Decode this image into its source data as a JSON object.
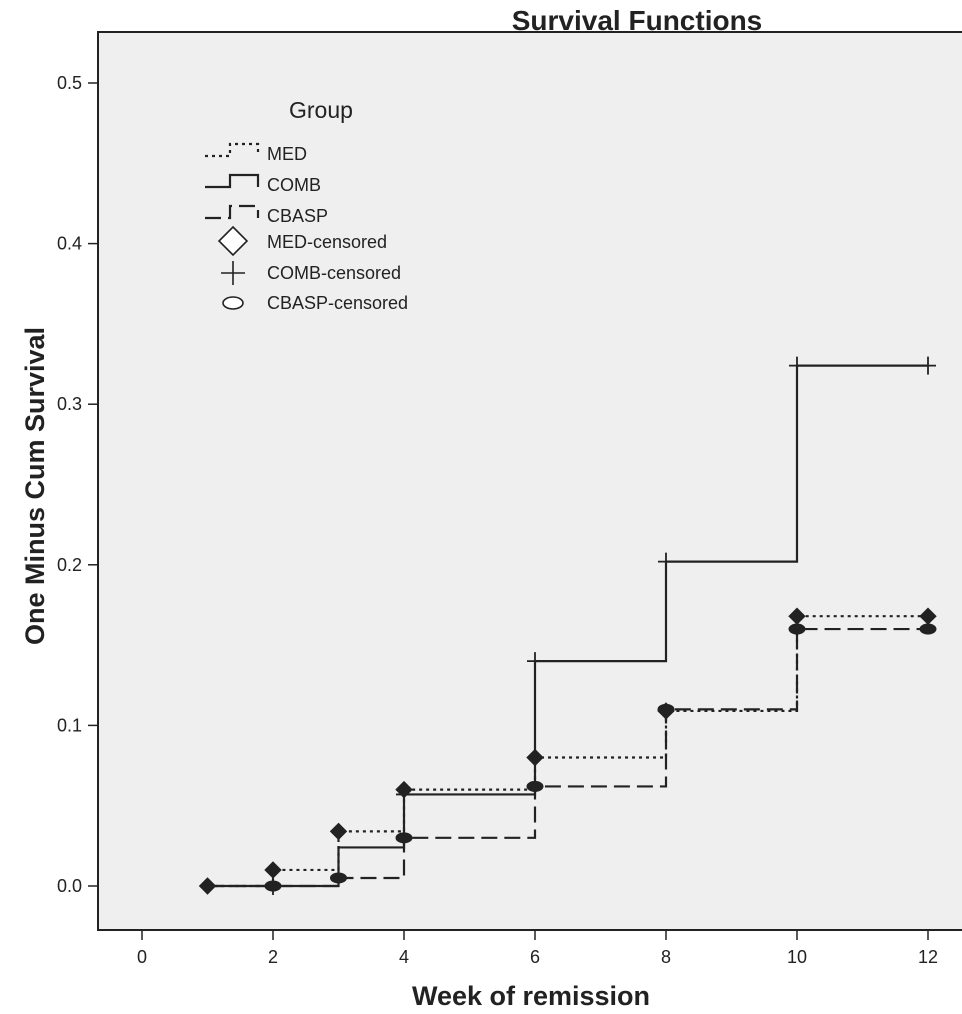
{
  "chart_data": {
    "type": "line",
    "step": true,
    "title": "Survival Functions",
    "xlabel": "Week of remission",
    "ylabel": "One Minus Cum Survival",
    "xlim": [
      0,
      12
    ],
    "ylim": [
      0,
      0.5
    ],
    "xticks": [
      "0",
      "2",
      "4",
      "6",
      "8",
      "10",
      "12"
    ],
    "yticks": [
      "0.0",
      "0.1",
      "0.2",
      "0.3",
      "0.4",
      "0.5"
    ],
    "grid": false,
    "background": "#efefef",
    "legend": {
      "title": "Group",
      "position": "top-left",
      "entries": [
        "MED",
        "COMB",
        "CBASP",
        "MED-censored",
        "COMB-censored",
        "CBASP-censored"
      ]
    },
    "series": [
      {
        "name": "MED",
        "line_style": "dotted",
        "censor_marker": "diamond",
        "steps": [
          [
            1,
            0
          ],
          [
            2,
            0.01
          ],
          [
            3,
            0.034
          ],
          [
            4,
            0.06
          ],
          [
            6,
            0.08
          ],
          [
            8,
            0.109
          ],
          [
            10,
            0.168
          ],
          [
            12,
            0.168
          ]
        ],
        "censored": [
          [
            1,
            0
          ],
          [
            2,
            0.01
          ],
          [
            3,
            0.034
          ],
          [
            4,
            0.06
          ],
          [
            6,
            0.08
          ],
          [
            8,
            0.109
          ],
          [
            10,
            0.168
          ],
          [
            12,
            0.168
          ]
        ]
      },
      {
        "name": "COMB",
        "line_style": "solid",
        "censor_marker": "plus",
        "steps": [
          [
            1,
            0
          ],
          [
            3,
            0.024
          ],
          [
            4,
            0.057
          ],
          [
            6,
            0.14
          ],
          [
            8,
            0.202
          ],
          [
            10,
            0.324
          ],
          [
            12,
            0.324
          ]
        ],
        "censored": [
          [
            2,
            0
          ],
          [
            4,
            0.057
          ],
          [
            6,
            0.14
          ],
          [
            8,
            0.202
          ],
          [
            10,
            0.324
          ],
          [
            12,
            0.324
          ]
        ]
      },
      {
        "name": "CBASP",
        "line_style": "dashed",
        "censor_marker": "ellipse",
        "steps": [
          [
            1,
            0
          ],
          [
            3,
            0.005
          ],
          [
            4,
            0.03
          ],
          [
            6,
            0.062
          ],
          [
            8,
            0.11
          ],
          [
            10,
            0.16
          ],
          [
            12,
            0.16
          ]
        ],
        "censored": [
          [
            2,
            0
          ],
          [
            3,
            0.005
          ],
          [
            4,
            0.03
          ],
          [
            6,
            0.062
          ],
          [
            8,
            0.11
          ],
          [
            10,
            0.16
          ],
          [
            12,
            0.16
          ]
        ]
      }
    ]
  }
}
